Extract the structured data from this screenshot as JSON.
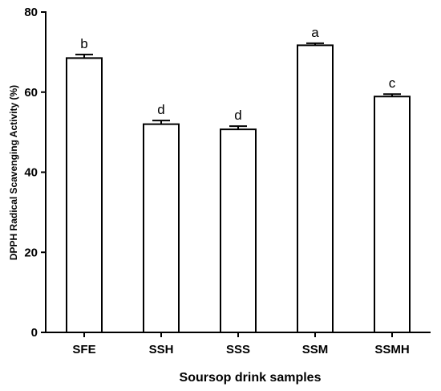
{
  "chart_data": {
    "type": "bar",
    "categories": [
      "SFE",
      "SSH",
      "SSS",
      "SSM",
      "SSMH"
    ],
    "values": [
      68.5,
      52.0,
      50.7,
      71.7,
      58.9
    ],
    "errors": [
      0.9,
      0.9,
      0.8,
      0.5,
      0.6
    ],
    "significance_labels": [
      "b",
      "d",
      "d",
      "a",
      "c"
    ],
    "xlabel": "Soursop drink samples",
    "ylabel": "DPPH Radical Scavenging Activity (%)",
    "ylim": [
      0,
      80
    ],
    "yticks": [
      0,
      20,
      40,
      60,
      80
    ],
    "bar_fill": "#ffffff",
    "bar_stroke": "#000000",
    "grid": false,
    "legend": "none"
  }
}
